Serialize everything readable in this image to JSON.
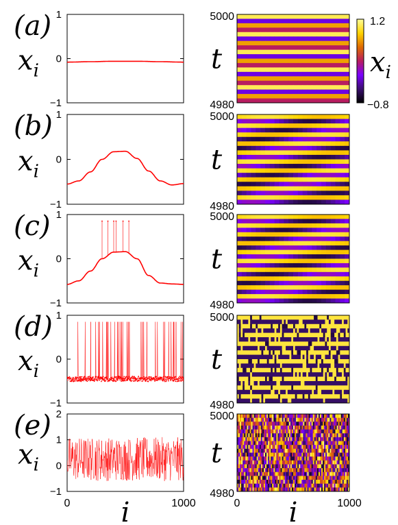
{
  "colorbar": {
    "label": "x_i",
    "ticks": [
      "1.2",
      "−0.8"
    ],
    "range": [
      -0.8,
      1.2
    ],
    "colors": [
      "#000000",
      "#3b0f70",
      "#7a00ff",
      "#b81d60",
      "#e06b00",
      "#ffd400",
      "#fffe9a"
    ]
  },
  "line_color": "#ff0000",
  "chart_data": [
    {
      "type": "line",
      "panel": "(a)",
      "ylabel": "x_i",
      "xlim": [
        0,
        1000
      ],
      "ylim": [
        -1,
        1
      ],
      "yticks": [
        "1",
        "0",
        "−1"
      ],
      "xticks": [],
      "series": [
        {
          "x": [
            0,
            200,
            400,
            600,
            800,
            1000
          ],
          "y": [
            -0.08,
            -0.07,
            -0.06,
            -0.06,
            -0.07,
            -0.08
          ]
        }
      ],
      "spikes": []
    },
    {
      "type": "line",
      "panel": "(b)",
      "ylabel": "x_i",
      "xlim": [
        0,
        1000
      ],
      "ylim": [
        -1,
        1
      ],
      "yticks": [
        "1",
        "0",
        "−1"
      ],
      "xticks": [],
      "series": [
        {
          "x": [
            0,
            100,
            200,
            300,
            400,
            500,
            600,
            700,
            800,
            900,
            1000
          ],
          "y": [
            -0.55,
            -0.48,
            -0.28,
            0.0,
            0.17,
            0.18,
            0.02,
            -0.26,
            -0.48,
            -0.57,
            -0.54
          ]
        }
      ],
      "spikes": []
    },
    {
      "type": "line",
      "panel": "(c)",
      "ylabel": "x_i",
      "xlim": [
        0,
        1000
      ],
      "ylim": [
        -1,
        1
      ],
      "yticks": [
        "1",
        "0",
        "−1"
      ],
      "xticks": [],
      "series": [
        {
          "x": [
            0,
            100,
            200,
            300,
            400,
            500,
            600,
            700,
            800,
            900,
            1000
          ],
          "y": [
            -0.58,
            -0.5,
            -0.28,
            0.0,
            0.15,
            0.16,
            0.0,
            -0.38,
            -0.55,
            -0.57,
            -0.58
          ]
        }
      ],
      "spikes": [
        {
          "i": 300,
          "top": 0.85
        },
        {
          "i": 350,
          "top": 0.85
        },
        {
          "i": 400,
          "top": 0.85
        },
        {
          "i": 420,
          "top": 0.85
        },
        {
          "i": 480,
          "top": 0.85
        },
        {
          "i": 530,
          "top": 0.85
        }
      ]
    },
    {
      "type": "scatter",
      "panel": "(d)",
      "ylabel": "x_i",
      "xlim": [
        0,
        1000
      ],
      "ylim": [
        -1,
        1
      ],
      "yticks": [
        "1",
        "0",
        "−1"
      ],
      "xticks": [],
      "baseline": -0.45,
      "top": 0.85,
      "noise": 0.06,
      "spike_fraction": 0.1
    },
    {
      "type": "scatter",
      "panel": "(e)",
      "ylabel": "x_i",
      "xlabel": "i",
      "xlim": [
        0,
        1000
      ],
      "ylim": [
        -1,
        2
      ],
      "yticks": [
        "2",
        "1",
        "0",
        "−1"
      ],
      "xticks": [
        "0",
        "1000"
      ],
      "low": -0.6,
      "high": 1.1
    }
  ],
  "heatmaps": [
    {
      "panel": "(a)",
      "ylabel": "t",
      "yticks": [
        "5000",
        "4980"
      ],
      "xticks": [],
      "trange": [
        4980,
        5000
      ],
      "pattern": "uniform"
    },
    {
      "panel": "(b)",
      "ylabel": "t",
      "yticks": [
        "5000",
        "4980"
      ],
      "xticks": [],
      "trange": [
        4980,
        5000
      ],
      "pattern": "wave"
    },
    {
      "panel": "(c)",
      "ylabel": "t",
      "yticks": [
        "5000",
        "4980"
      ],
      "xticks": [],
      "trange": [
        4980,
        5000
      ],
      "pattern": "wave_spikes"
    },
    {
      "panel": "(d)",
      "ylabel": "t",
      "yticks": [
        "5000",
        "4980"
      ],
      "xticks": [],
      "trange": [
        4980,
        5000
      ],
      "pattern": "dense_bands"
    },
    {
      "panel": "(e)",
      "ylabel": "t",
      "xlabel": "i",
      "yticks": [
        "5000",
        "4980"
      ],
      "xticks": [
        "0",
        "1000"
      ],
      "trange": [
        4980,
        5000
      ],
      "pattern": "chaotic"
    }
  ]
}
